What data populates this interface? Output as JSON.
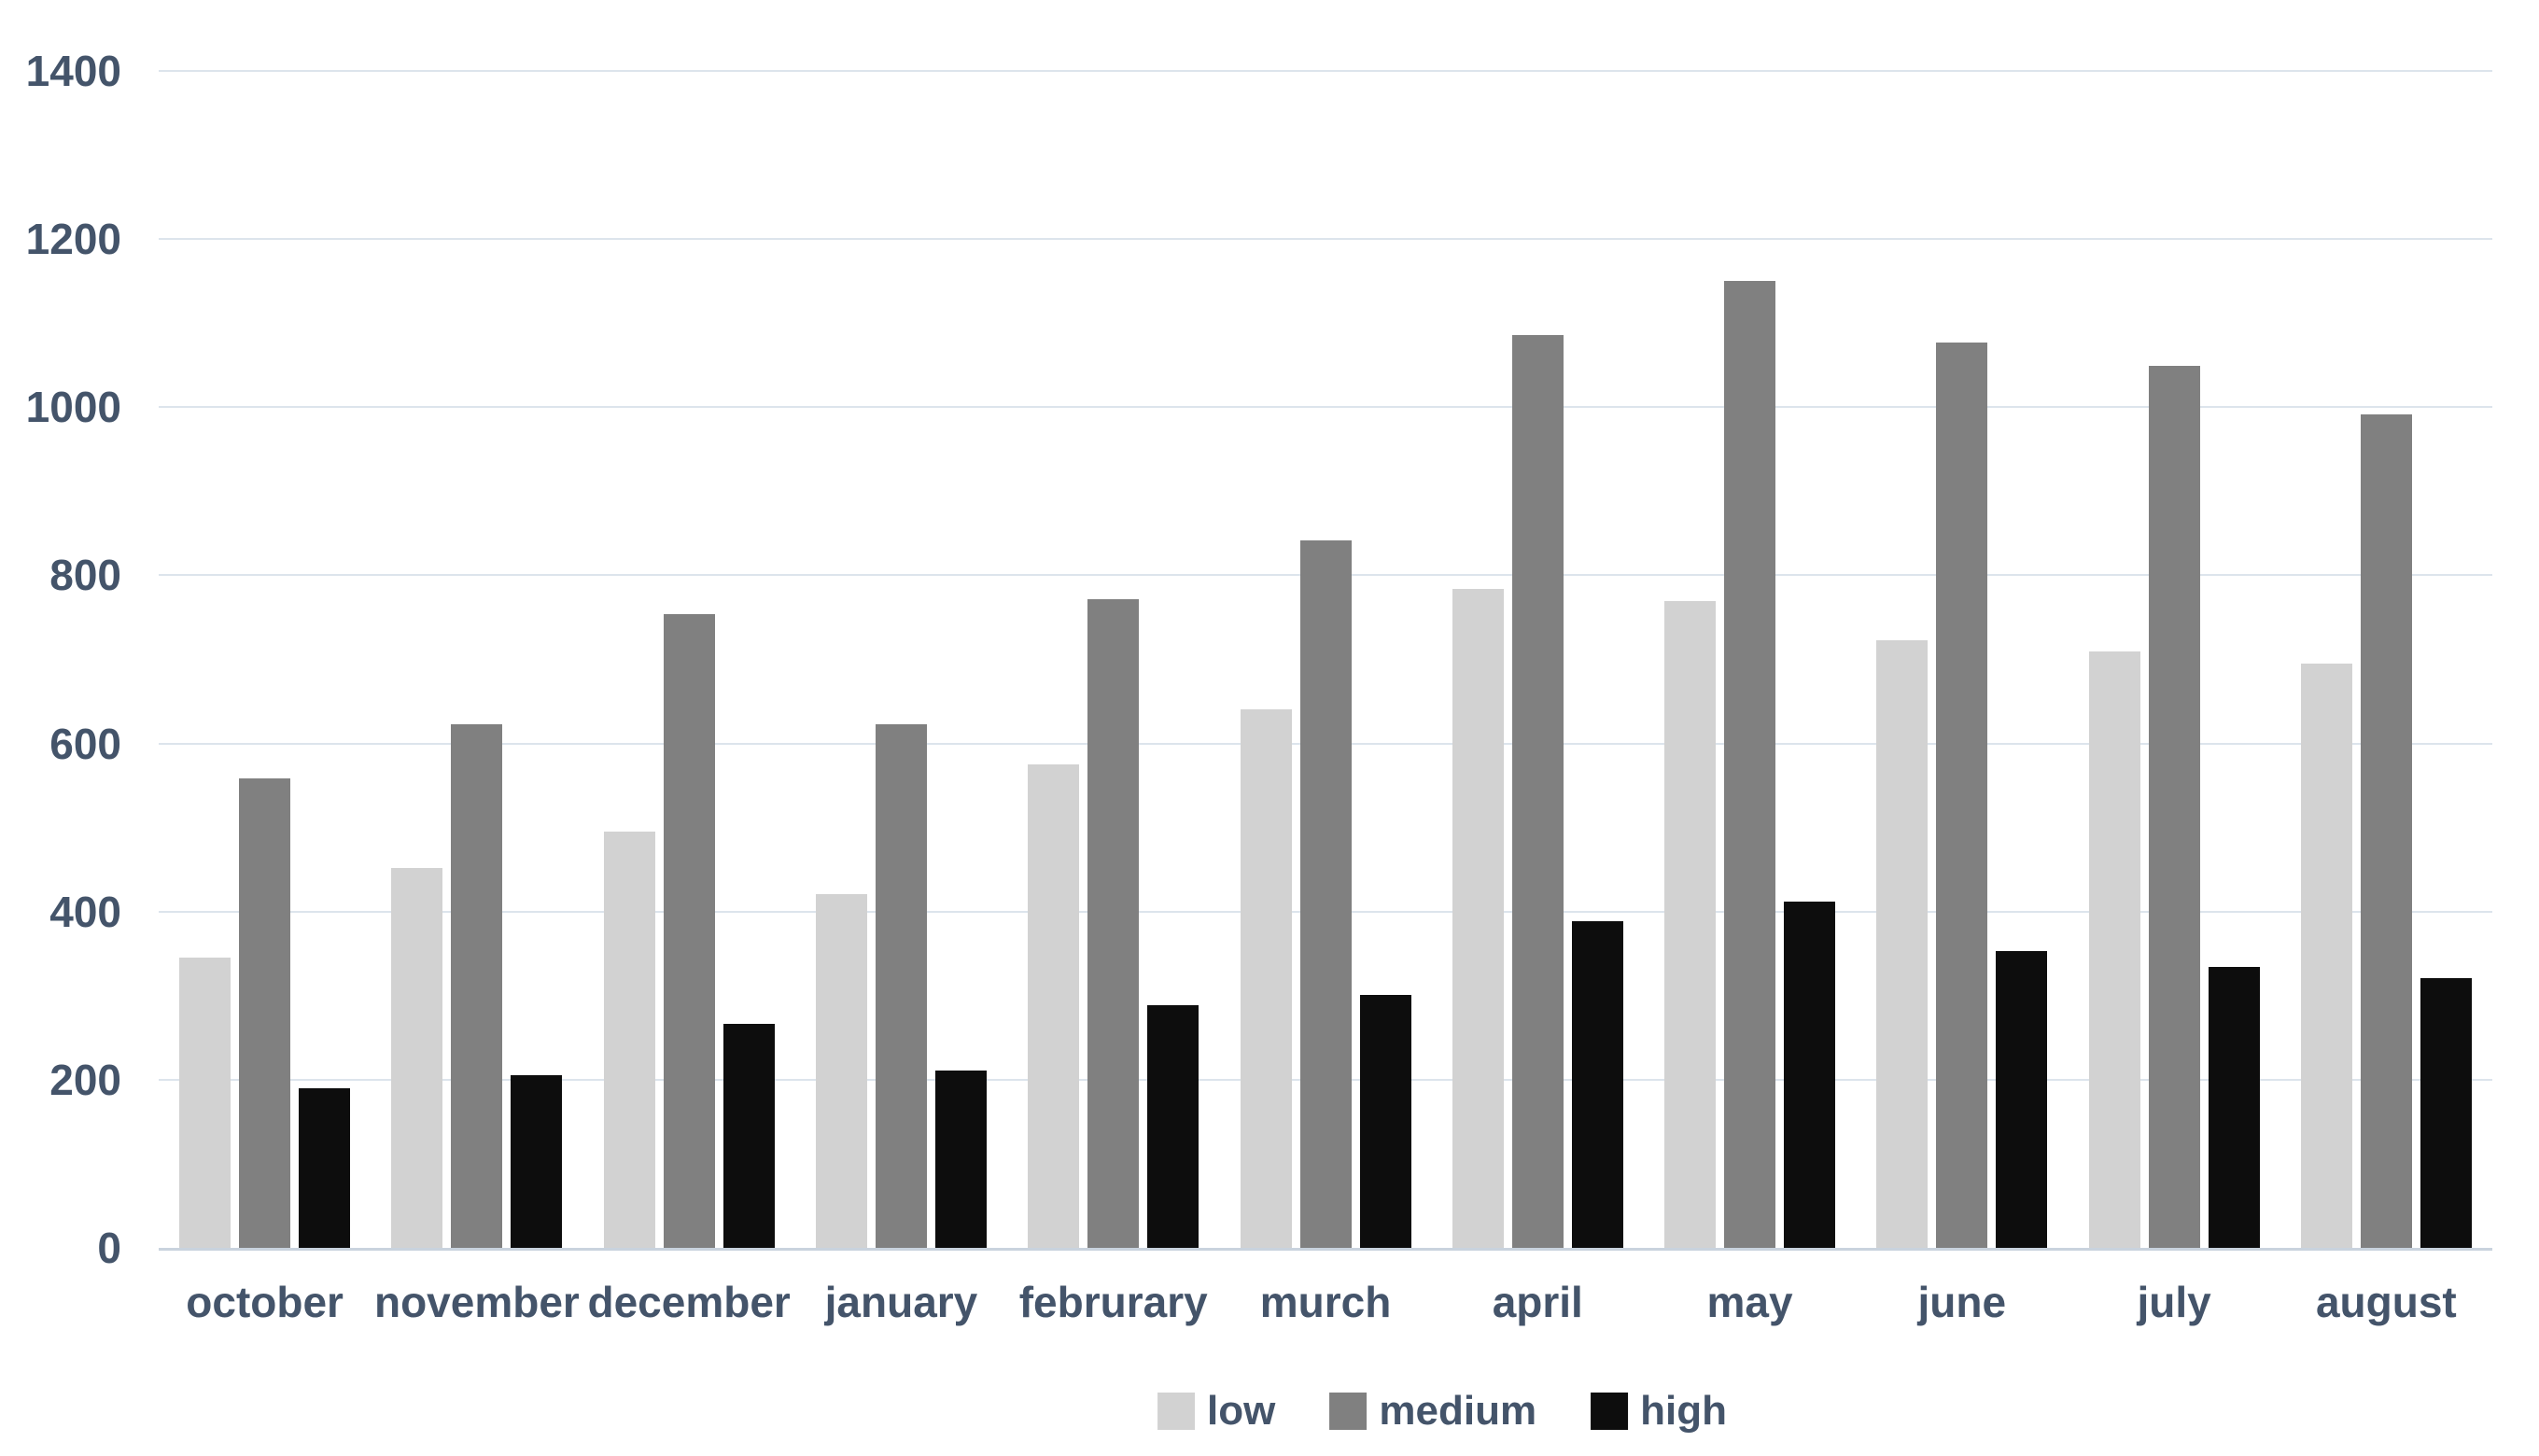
{
  "chart_data": {
    "type": "bar",
    "title": "",
    "xlabel": "",
    "ylabel": "",
    "categories": [
      "october",
      "november",
      "december",
      "january",
      "februrary",
      "murch",
      "april",
      "may",
      "june",
      "july",
      "august"
    ],
    "series": [
      {
        "name": "low",
        "color": "#d2d2d2",
        "values": [
          345,
          452,
          495,
          421,
          575,
          641,
          784,
          769,
          723,
          709,
          695
        ]
      },
      {
        "name": "medium",
        "color": "#808080",
        "values": [
          558,
          623,
          754,
          623,
          772,
          842,
          1086,
          1150,
          1077,
          1049,
          991
        ]
      },
      {
        "name": "high",
        "color": "#0d0d0d",
        "values": [
          190,
          205,
          266,
          211,
          289,
          301,
          389,
          412,
          353,
          334,
          321
        ]
      }
    ],
    "ylim": [
      0,
      1400
    ],
    "yticks": [
      0,
      200,
      400,
      600,
      800,
      1000,
      1200,
      1400
    ],
    "grid": true,
    "legend_position": "bottom",
    "text_color": "#44546a",
    "gridline_color": "#dde4ec",
    "axisline_color": "#c9d3de",
    "background_color": "#ffffff"
  }
}
